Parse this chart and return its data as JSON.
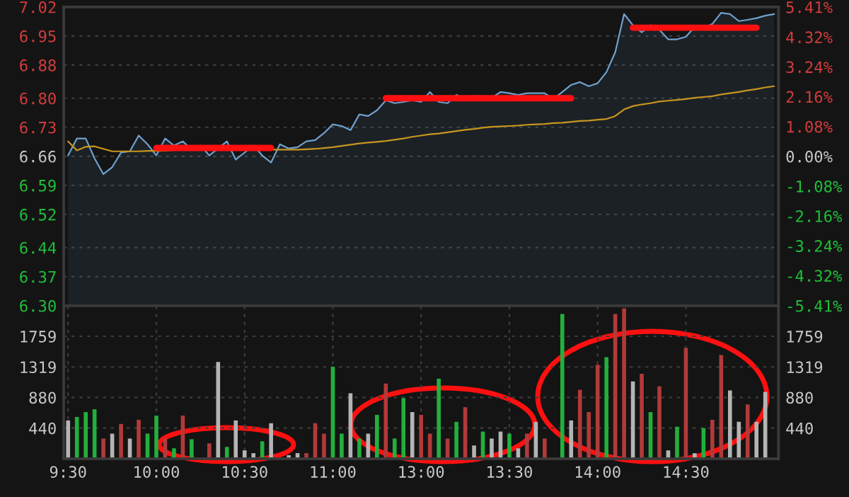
{
  "chart_data": [
    {
      "type": "line",
      "categories": [
        null,
        null,
        null,
        null,
        null,
        null,
        null,
        null,
        null,
        null,
        null,
        null,
        null,
        null,
        null,
        null,
        null,
        null,
        null,
        null,
        null,
        null,
        null,
        null,
        null,
        null,
        null,
        null,
        null,
        null,
        null,
        null,
        null,
        null,
        null,
        null,
        null,
        null,
        null,
        null,
        null,
        null,
        null,
        null,
        null,
        null,
        null,
        null,
        null,
        null,
        null,
        null,
        null,
        null,
        null,
        null,
        null,
        null,
        null,
        null,
        null,
        null,
        null,
        null,
        null,
        null,
        null,
        null,
        null,
        null,
        null,
        null,
        null,
        null,
        null,
        null,
        null,
        null,
        null,
        null,
        null
      ],
      "ylim": [
        6.3,
        7.02
      ],
      "yticks": [
        {
          "value": 6.3,
          "label": "6.30"
        },
        6.37,
        6.44,
        6.52,
        6.59,
        6.66,
        6.73,
        {
          "value": 6.8,
          "label": "6.80"
        },
        6.88,
        6.95,
        7.02
      ],
      "y2lim": [
        -5.41,
        5.41
      ],
      "y2ticks": [
        {
          "value": -5.41,
          "label": "-5.41%"
        },
        {
          "value": -4.32,
          "label": "-4.32%"
        },
        {
          "value": -3.24,
          "label": "-3.24%"
        },
        {
          "value": -2.16,
          "label": "-2.16%"
        },
        {
          "value": -1.08,
          "label": "-1.08%"
        },
        {
          "value": 0,
          "label": "0.00%"
        },
        {
          "value": 1.08,
          "label": "1.08%"
        },
        {
          "value": 2.16,
          "label": "2.16%"
        },
        {
          "value": 3.24,
          "label": "3.24%"
        },
        {
          "value": 4.32,
          "label": "4.32%"
        },
        {
          "value": 5.41,
          "label": "5.41%"
        }
      ],
      "tick_labels": "y",
      "grid": "y",
      "series": [
        {
          "type": "area",
          "color": "#6fa0cc",
          "values": [
            6.662,
            6.703,
            6.703,
            6.655,
            6.617,
            6.634,
            6.669,
            6.672,
            6.71,
            6.689,
            6.662,
            6.703,
            6.686,
            6.696,
            6.676,
            6.686,
            6.662,
            6.679,
            6.696,
            6.652,
            6.669,
            6.686,
            6.662,
            6.645,
            6.689,
            6.679,
            6.682,
            6.696,
            6.699,
            6.716,
            6.737,
            6.733,
            6.723,
            6.761,
            6.757,
            6.771,
            6.795,
            6.788,
            6.791,
            6.795,
            6.791,
            6.815,
            6.791,
            6.788,
            6.808,
            6.798,
            6.805,
            6.805,
            6.801,
            6.815,
            6.812,
            6.808,
            6.812,
            6.812,
            6.812,
            6.798,
            6.815,
            6.832,
            6.839,
            6.829,
            6.836,
            6.863,
            6.911,
            7.003,
            6.976,
            6.959,
            6.976,
            6.965,
            6.942,
            6.942,
            6.948,
            6.972,
            6.969,
            6.979,
            7.006,
            7.003,
            6.986,
            6.989,
            6.993,
            6.999,
            7.003
          ]
        },
        {
          "type": "line",
          "color": "#c8961e",
          "values": [
            6.696,
            6.674,
            6.683,
            6.684,
            6.678,
            6.672,
            6.672,
            6.672,
            6.672,
            6.673,
            6.673,
            6.674,
            6.675,
            6.676,
            6.676,
            6.676,
            6.676,
            6.676,
            6.676,
            6.676,
            6.676,
            6.676,
            6.676,
            6.676,
            6.676,
            6.676,
            6.676,
            6.677,
            6.678,
            6.68,
            6.682,
            6.685,
            6.688,
            6.691,
            6.693,
            6.695,
            6.697,
            6.7,
            6.703,
            6.707,
            6.71,
            6.713,
            6.715,
            6.718,
            6.721,
            6.724,
            6.726,
            6.729,
            6.731,
            6.732,
            6.733,
            6.734,
            6.736,
            6.737,
            6.738,
            6.74,
            6.741,
            6.743,
            6.745,
            6.746,
            6.748,
            6.75,
            6.757,
            6.773,
            6.781,
            6.785,
            6.788,
            6.792,
            6.794,
            6.796,
            6.798,
            6.801,
            6.803,
            6.805,
            6.809,
            6.812,
            6.815,
            6.819,
            6.822,
            6.826,
            6.829
          ]
        },
        {
          "type": "line",
          "color": "#ff1010",
          "values": [
            null,
            null,
            null,
            null,
            null,
            null,
            null,
            null,
            null,
            null,
            6.68,
            6.68,
            6.68,
            6.68,
            6.68,
            6.68,
            6.68,
            6.68,
            6.68,
            6.68,
            6.68,
            6.68,
            6.68,
            6.68,
            null,
            null,
            null,
            null,
            null,
            null,
            null,
            null,
            null,
            null,
            null,
            null,
            6.8,
            6.8,
            6.8,
            6.8,
            6.8,
            6.8,
            6.8,
            6.8,
            6.8,
            6.8,
            6.8,
            6.8,
            6.8,
            6.8,
            6.8,
            6.8,
            6.8,
            6.8,
            6.8,
            6.8,
            6.8,
            6.8,
            null,
            null,
            null,
            null,
            null,
            null,
            6.97,
            6.97,
            6.97,
            6.97,
            6.97,
            6.97,
            6.97,
            6.97,
            6.97,
            6.97,
            6.97,
            6.97,
            6.97,
            6.97,
            6.97,
            null,
            null
          ]
        }
      ]
    },
    {
      "type": "bar",
      "categories": [
        "9:30",
        null,
        null,
        null,
        null,
        null,
        null,
        null,
        null,
        null,
        "10:00",
        null,
        null,
        null,
        null,
        null,
        null,
        null,
        null,
        null,
        "10:30",
        null,
        null,
        null,
        null,
        null,
        null,
        null,
        null,
        null,
        "11:00",
        null,
        null,
        null,
        null,
        null,
        null,
        null,
        null,
        null,
        "13:00",
        null,
        null,
        null,
        null,
        null,
        null,
        null,
        null,
        null,
        "13:30",
        null,
        null,
        null,
        null,
        null,
        null,
        null,
        null,
        null,
        "14:00",
        null,
        null,
        null,
        null,
        null,
        null,
        null,
        null,
        null,
        "14:30",
        null,
        null,
        null,
        null,
        null,
        null,
        null,
        null,
        null,
        null
      ],
      "ylim": [
        0,
        2199
      ],
      "yticks": [
        440,
        880,
        1319,
        1759
      ],
      "y2lim": [
        0,
        2199
      ],
      "y2ticks": [
        440,
        880,
        1319,
        1759
      ],
      "grid": true,
      "values": [
        550,
        600,
        670,
        710,
        290,
        360,
        500,
        290,
        560,
        360,
        620,
        290,
        150,
        620,
        280,
        null,
        220,
        1390,
        170,
        550,
        120,
        80,
        250,
        510,
        null,
        50,
        80,
        80,
        510,
        360,
        1320,
        360,
        940,
        290,
        360,
        630,
        1080,
        290,
        870,
        670,
        630,
        360,
        1150,
        290,
        530,
        740,
        190,
        390,
        290,
        390,
        360,
        150,
        360,
        530,
        290,
        null,
        2080,
        550,
        990,
        670,
        1350,
        1460,
        2080,
        2160,
        1110,
        1220,
        670,
        1040,
        120,
        460,
        1590,
        80,
        440,
        560,
        1490,
        980,
        530,
        780,
        530,
        960,
        null
      ],
      "colors": [
        "#b4b4b4",
        "#22b03c",
        "#22b03c",
        "#22b03c",
        "#b23a3a",
        "#b4b4b4",
        "#b23a3a",
        "#b4b4b4",
        "#b23a3a",
        "#22b03c",
        "#22b03c",
        "#b23a3a",
        "#22b03c",
        "#b23a3a",
        "#22b03c",
        "#b4b4b4",
        "#b23a3a",
        "#b4b4b4",
        "#22b03c",
        "#b4b4b4",
        "#b4b4b4",
        "#b4b4b4",
        "#22b03c",
        "#b4b4b4",
        "#b4b4b4",
        "#b4b4b4",
        "#b4b4b4",
        "#b23a3a",
        "#b23a3a",
        "#b23a3a",
        "#22b03c",
        "#22b03c",
        "#b4b4b4",
        "#22b03c",
        "#b4b4b4",
        "#22b03c",
        "#b23a3a",
        "#22b03c",
        "#22b03c",
        "#b4b4b4",
        "#b23a3a",
        "#b23a3a",
        "#22b03c",
        "#b23a3a",
        "#22b03c",
        "#b23a3a",
        "#b4b4b4",
        "#22b03c",
        "#b4b4b4",
        "#b4b4b4",
        "#22b03c",
        "#b4b4b4",
        "#b23a3a",
        "#b4b4b4",
        "#b23a3a",
        "#b4b4b4",
        "#22b03c",
        "#b4b4b4",
        "#b23a3a",
        "#b23a3a",
        "#b23a3a",
        "#22b03c",
        "#b23a3a",
        "#b23a3a",
        "#b4b4b4",
        "#b23a3a",
        "#22b03c",
        "#b23a3a",
        "#b4b4b4",
        "#22b03c",
        "#b23a3a",
        "#b4b4b4",
        "#22b03c",
        "#b23a3a",
        "#b23a3a",
        "#b4b4b4",
        "#b4b4b4",
        "#b23a3a",
        "#b4b4b4",
        "#b4b4b4",
        "#b4b4b4"
      ]
    }
  ]
}
